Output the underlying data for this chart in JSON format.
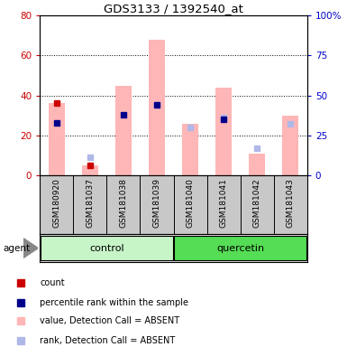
{
  "title": "GDS3133 / 1392540_at",
  "samples": [
    "GSM180920",
    "GSM181037",
    "GSM181038",
    "GSM181039",
    "GSM181040",
    "GSM181041",
    "GSM181042",
    "GSM181043"
  ],
  "groups": [
    {
      "name": "control",
      "indices": [
        0,
        1,
        2,
        3
      ],
      "color_light": "#b2f0b2",
      "color_dark": "#33cc33"
    },
    {
      "name": "quercetin",
      "indices": [
        4,
        5,
        6,
        7
      ],
      "color_light": "#33cc33",
      "color_dark": "#00aa00"
    }
  ],
  "count_values": [
    36,
    5,
    null,
    null,
    null,
    null,
    null,
    null
  ],
  "rank_values": [
    33,
    null,
    38,
    44,
    null,
    35,
    null,
    null
  ],
  "absent_value_bars": [
    36,
    5,
    45,
    68,
    26,
    44,
    11,
    30
  ],
  "absent_rank_dots": [
    null,
    11,
    null,
    44,
    30,
    36,
    17,
    32
  ],
  "left_ylim": [
    0,
    80
  ],
  "right_ylim": [
    0,
    100
  ],
  "left_yticks": [
    0,
    20,
    40,
    60,
    80
  ],
  "right_yticks": [
    0,
    25,
    50,
    75,
    100
  ],
  "left_yticklabels": [
    "0",
    "20",
    "40",
    "60",
    "80"
  ],
  "right_yticklabels": [
    "0",
    "25",
    "50",
    "75",
    "100%"
  ],
  "legend_items": [
    {
      "label": "count",
      "color": "#cc0000",
      "marker": "s"
    },
    {
      "label": "percentile rank within the sample",
      "color": "#00008b",
      "marker": "s"
    },
    {
      "label": "value, Detection Call = ABSENT",
      "color": "#ffb6b6",
      "marker": "s"
    },
    {
      "label": "rank, Detection Call = ABSENT",
      "color": "#b0b8e8",
      "marker": "s"
    }
  ],
  "bar_width": 0.5,
  "absent_bar_color": "#ffb6b6",
  "absent_dot_color": "#b0b8e8",
  "count_color": "#cc0000",
  "rank_color": "#00008b",
  "label_area_bg": "#c8c8c8",
  "agent_label": "agent"
}
